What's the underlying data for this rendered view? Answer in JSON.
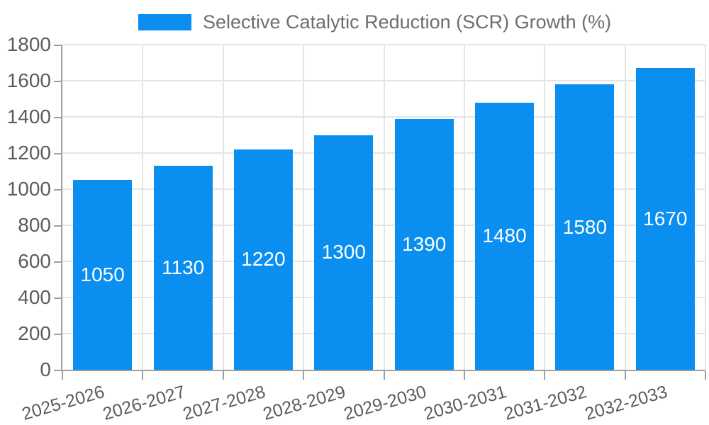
{
  "chart_data": {
    "type": "bar",
    "title": "Selective Catalytic Reduction (SCR) Growth (%)",
    "legend": {
      "label": "Selective Catalytic Reduction (SCR) Growth (%)",
      "position": "top-center"
    },
    "categories": [
      "2025-2026",
      "2026-2027",
      "2027-2028",
      "2028-2029",
      "2029-2030",
      "2030-2031",
      "2031-2032",
      "2032-2033"
    ],
    "series": [
      {
        "name": "Selective Catalytic Reduction (SCR) Growth (%)",
        "values": [
          1050,
          1130,
          1220,
          1300,
          1390,
          1480,
          1580,
          1670
        ]
      }
    ],
    "xlabel": "",
    "ylabel": "",
    "ylim": [
      0,
      1800
    ],
    "yticks": [
      0,
      200,
      400,
      600,
      800,
      1000,
      1200,
      1400,
      1600,
      1800
    ],
    "grid": "both",
    "value_labels_position": "inside-center",
    "x_tick_rotation_deg": -16,
    "colors": {
      "bar": "#0a8ff0",
      "value_label": "#ffffff",
      "gridline": "#e5e5e5",
      "axis": "#9e9e9e",
      "tick_label": "#5c5c5c",
      "legend_text": "#6e6e6e",
      "background": "#ffffff"
    }
  }
}
